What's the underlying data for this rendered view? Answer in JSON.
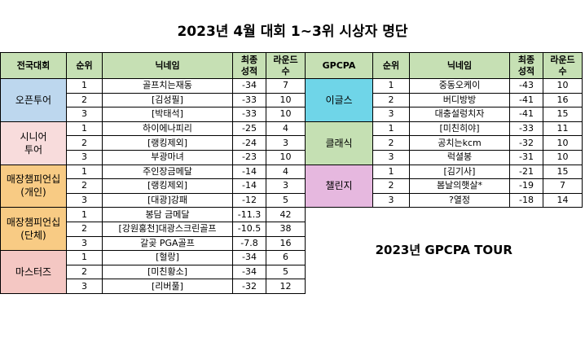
{
  "title": "2023년 4월 대회 1~3위 시상자 명단",
  "headers": {
    "left": [
      "전국대회",
      "순위",
      "닉네임",
      "최종\n성적",
      "라운드\n수"
    ],
    "right": [
      "GPCPA",
      "순위",
      "닉네임",
      "최종\n성적",
      "라운드\n수"
    ]
  },
  "left_groups": [
    {
      "name": "오픈투어",
      "color": "#bdd7ee",
      "rows": [
        {
          "rank": "1",
          "nick": "골프치는재동",
          "score": "-34",
          "rounds": "7"
        },
        {
          "rank": "2",
          "nick": "[김성필]",
          "score": "-33",
          "rounds": "10"
        },
        {
          "rank": "3",
          "nick": "[박태석]",
          "score": "-33",
          "rounds": "10"
        }
      ]
    },
    {
      "name": "시니어\n투어",
      "color": "#f8dcdc",
      "rows": [
        {
          "rank": "1",
          "nick": "하이에나피리",
          "score": "-25",
          "rounds": "4"
        },
        {
          "rank": "2",
          "nick": "[랭킹제외]",
          "score": "-24",
          "rounds": "3"
        },
        {
          "rank": "3",
          "nick": "부광마녀",
          "score": "-23",
          "rounds": "10"
        }
      ]
    },
    {
      "name": "매장챔피언십\n(개인)",
      "color": "#f8cb84",
      "rows": [
        {
          "rank": "1",
          "nick": "주인장금메달",
          "score": "-14",
          "rounds": "4"
        },
        {
          "rank": "2",
          "nick": "[랭킹제외]",
          "score": "-14",
          "rounds": "3"
        },
        {
          "rank": "3",
          "nick": "[대광]강패",
          "score": "-12",
          "rounds": "5"
        }
      ]
    },
    {
      "name": "매장챔피언십\n(단체)",
      "color": "#f8cb84",
      "rows": [
        {
          "rank": "1",
          "nick": "봉담 금메달",
          "score": "-11.3",
          "rounds": "42"
        },
        {
          "rank": "2",
          "nick": "[강원홍천]대광스크린골프",
          "score": "-10.5",
          "rounds": "38"
        },
        {
          "rank": "3",
          "nick": "갈곶 PGA골프",
          "score": "-7.8",
          "rounds": "16"
        }
      ]
    },
    {
      "name": "마스터즈",
      "color": "#f4c7c3",
      "rows": [
        {
          "rank": "1",
          "nick": "[혈랑]",
          "score": "-34",
          "rounds": "6"
        },
        {
          "rank": "2",
          "nick": "[미친황소]",
          "score": "-34",
          "rounds": "5"
        },
        {
          "rank": "3",
          "nick": "[리버풀]",
          "score": "-32",
          "rounds": "12"
        }
      ]
    }
  ],
  "right_groups": [
    {
      "name": "이글스",
      "color": "#6fd5e8",
      "rows": [
        {
          "rank": "1",
          "nick": "중동오케이",
          "score": "-43",
          "rounds": "10"
        },
        {
          "rank": "2",
          "nick": "버디방방",
          "score": "-41",
          "rounds": "16"
        },
        {
          "rank": "3",
          "nick": "대충설렁치자",
          "score": "-41",
          "rounds": "15"
        }
      ]
    },
    {
      "name": "클래식",
      "color": "#c5e0b3",
      "rows": [
        {
          "rank": "1",
          "nick": "[미친히야]",
          "score": "-33",
          "rounds": "11"
        },
        {
          "rank": "2",
          "nick": "공치는kcm",
          "score": "-32",
          "rounds": "10"
        },
        {
          "rank": "3",
          "nick": "럭셜봉",
          "score": "-31",
          "rounds": "10"
        }
      ]
    },
    {
      "name": "챌린지",
      "color": "#e6b8df",
      "rows": [
        {
          "rank": "1",
          "nick": "[김기사]",
          "score": "-21",
          "rounds": "15"
        },
        {
          "rank": "2",
          "nick": "봄날의햇살*",
          "score": "-19",
          "rounds": "7"
        },
        {
          "rank": "3",
          "nick": "?열정",
          "score": "-18",
          "rounds": "14"
        }
      ]
    }
  ],
  "tour_label": "2023년 GPCPA TOUR"
}
